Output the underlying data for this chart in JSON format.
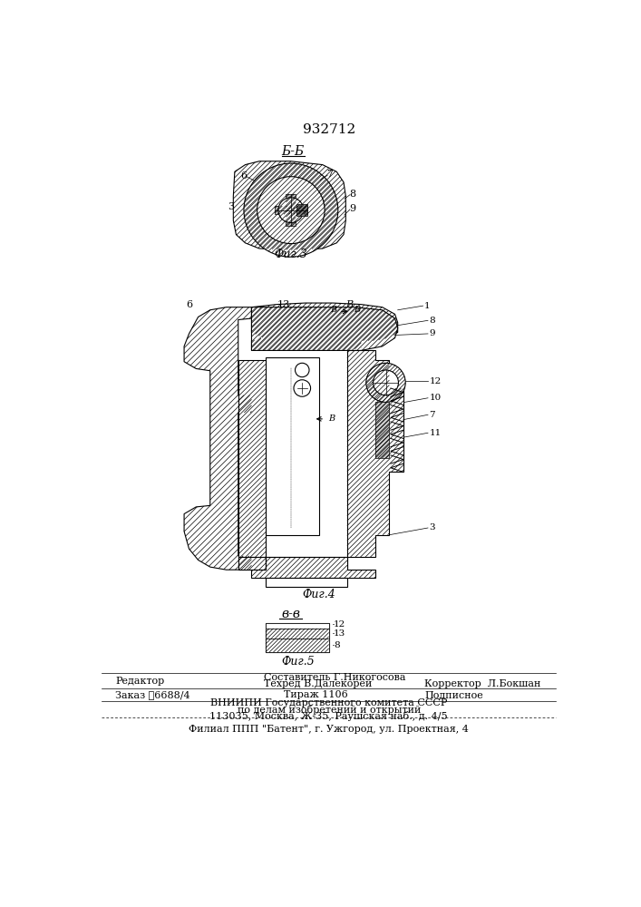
{
  "patent_number": "932712",
  "background": "#ffffff",
  "fig3_label": "Б-Б",
  "fig3_caption": "Фиг.3",
  "fig4_caption": "Фиг.4",
  "fig5_label": "в-в",
  "fig5_caption": "Фиг.5",
  "editor_label": "Редактор",
  "order_label": "Заказ ڈ6688/4",
  "compiler_label": "Составитель Г.Никогосова",
  "techred_label": "Техред В.Далекорей",
  "corrector_label": "Корректор  Л.Бокшан",
  "tirazh_label": "Тираж 1106",
  "podpisnoe_label": "Подписное",
  "vnipi_line1": "ВНИИПИ Государственного комитета СССР",
  "vnipi_line2": "по делам изобретений и открытий",
  "vnipi_line3": "113035, Москва, Ж-35, Раушская наб., д. 4/5",
  "filial_line": "Филиал ППП \"Батент\", г. Ужгород, ул. Проектная, 4",
  "lc": "#000000"
}
